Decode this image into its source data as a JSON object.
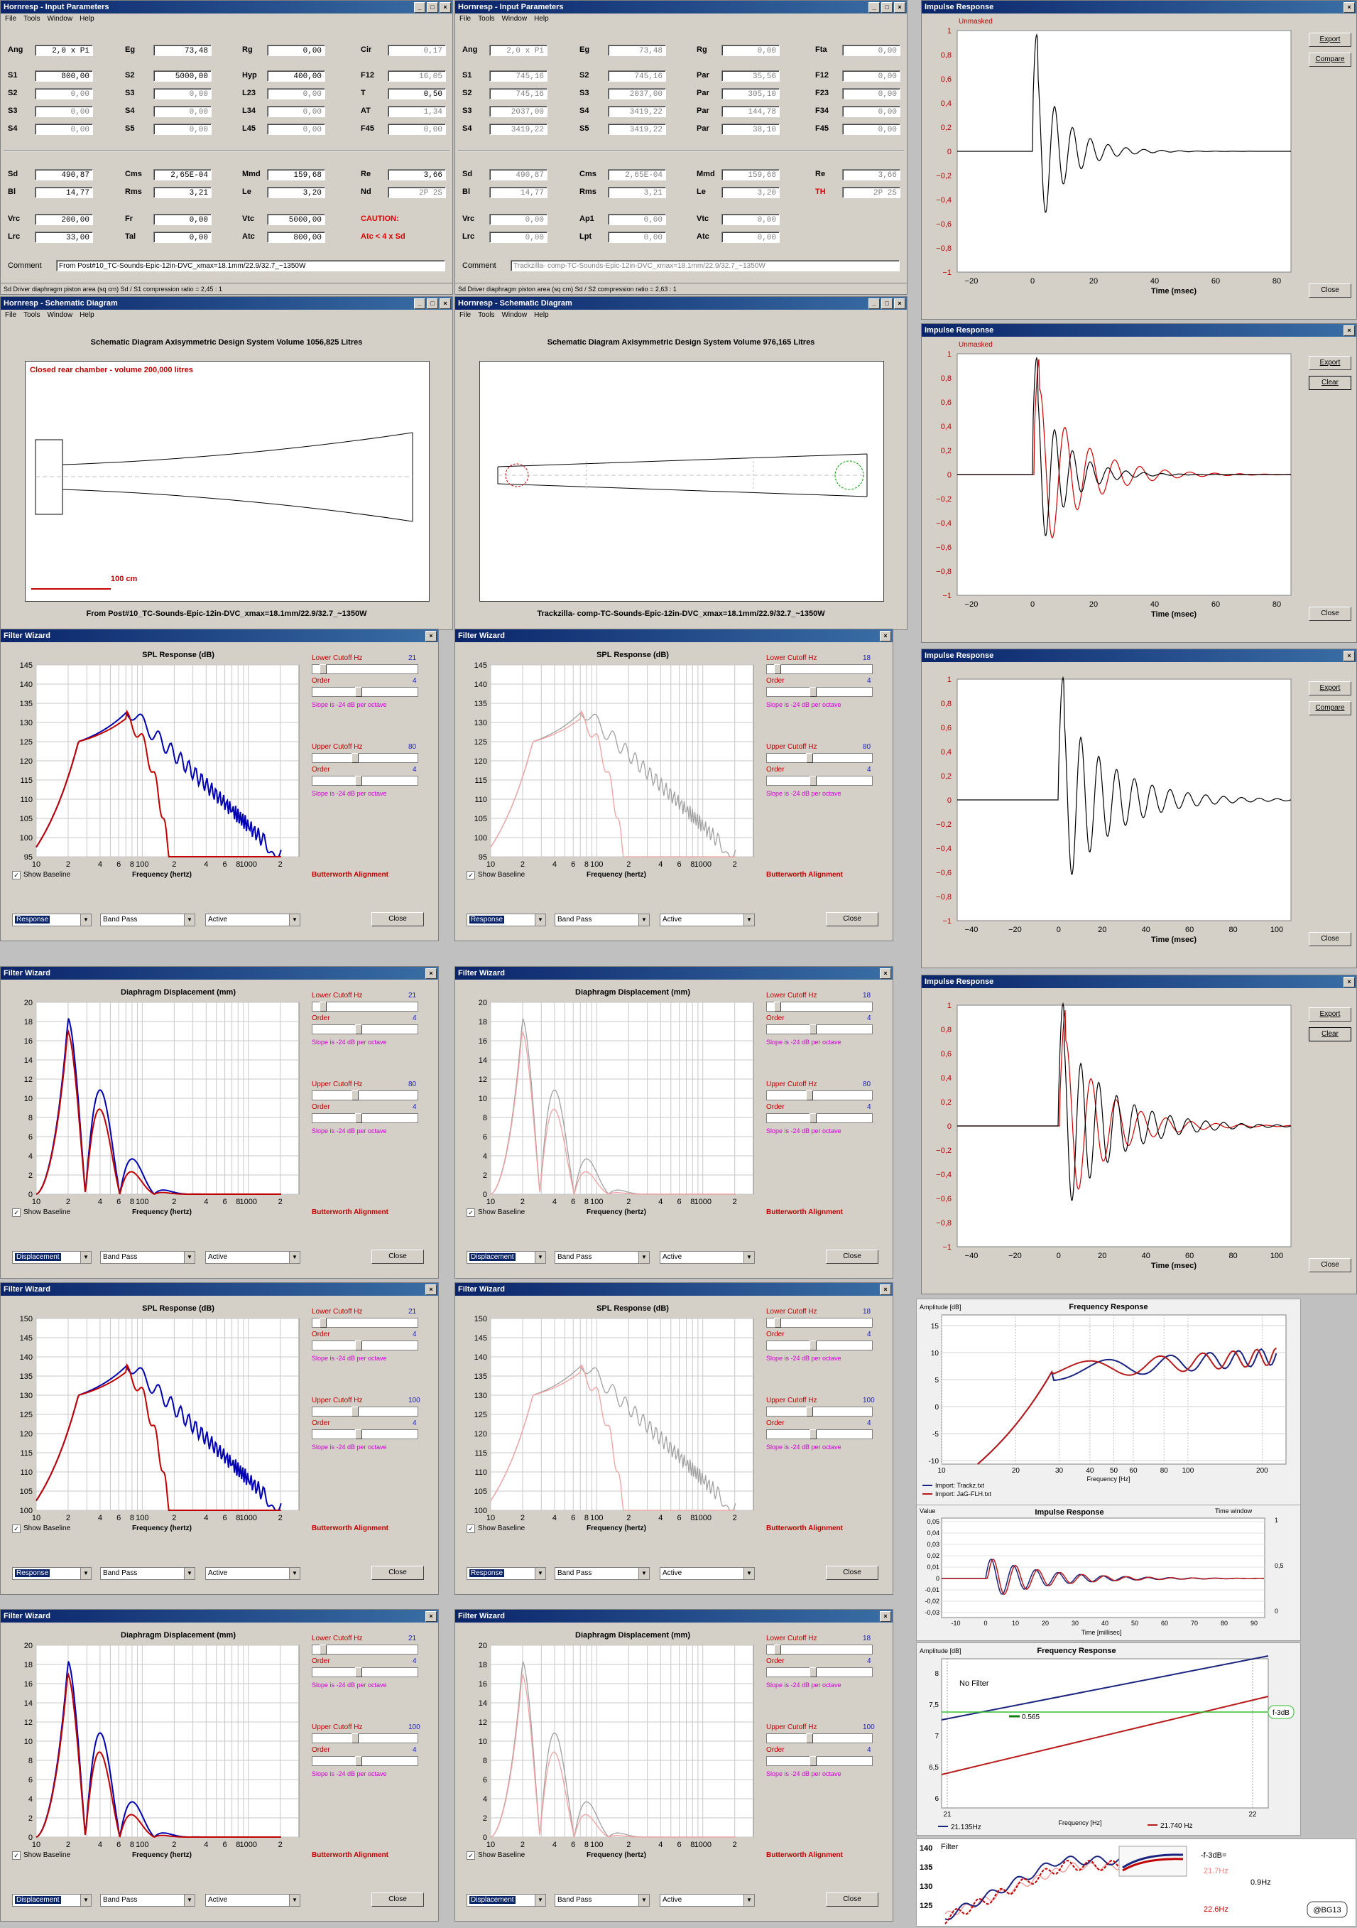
{
  "colors": {
    "red": "#c00000",
    "blue": "#0000b0",
    "pink": "#f4a0a0",
    "grey": "#a0a0a0",
    "title_blue": "#0a246a"
  },
  "input_windows": [
    {
      "title": "Hornresp - Input Parameters",
      "menu": [
        "File",
        "Tools",
        "Window",
        "Help"
      ],
      "rows": [
        [
          [
            "Ang",
            "2,0 x Pi"
          ],
          [
            "Eg",
            "73,48"
          ],
          [
            "Rg",
            "0,00"
          ],
          [
            "Cir",
            "0,17"
          ]
        ],
        [
          [
            "S1",
            "800,00"
          ],
          [
            "S2",
            "5000,00"
          ],
          [
            "Hyp",
            "400,00"
          ],
          [
            "F12",
            "16,05"
          ]
        ],
        [
          [
            "S2",
            "0,00"
          ],
          [
            "S3",
            "0,00"
          ],
          [
            "L23",
            "0,00"
          ],
          [
            "T",
            "0,50"
          ]
        ],
        [
          [
            "S3",
            "0,00"
          ],
          [
            "S4",
            "0,00"
          ],
          [
            "L34",
            "0,00"
          ],
          [
            "AT",
            "1,34"
          ]
        ],
        [
          [
            "S4",
            "0,00"
          ],
          [
            "S5",
            "0,00"
          ],
          [
            "L45",
            "0,00"
          ],
          [
            "F45",
            "0,00"
          ]
        ],
        [
          [
            "Sd",
            "490,87"
          ],
          [
            "Cms",
            "2,65E-04"
          ],
          [
            "Mmd",
            "159,68"
          ],
          [
            "Re",
            "3,66"
          ]
        ],
        [
          [
            "Bl",
            "14,77"
          ],
          [
            "Rms",
            "3,21"
          ],
          [
            "Le",
            "3,20"
          ],
          [
            "Nd",
            "2P 2S"
          ]
        ],
        [
          [
            "Vrc",
            "200,00"
          ],
          [
            "Fr",
            "0,00"
          ],
          [
            "Vtc",
            "5000,00"
          ],
          [
            "CAUTION:",
            ""
          ]
        ],
        [
          [
            "Lrc",
            "33,00"
          ],
          [
            "Tal",
            "0,00"
          ],
          [
            "Atc",
            "800,00"
          ],
          [
            "Atc < 4 x Sd",
            ""
          ]
        ]
      ],
      "comment_label": "Comment",
      "comment": "From Post#10_TC-Sounds-Epic-12in-DVC_xmax=18.1mm/22.9/32.7_~1350W",
      "status": "Sd   Driver diaphragm piston area  (sq cm)    Sd / S1 compression ratio = 2,45 : 1"
    },
    {
      "title": "Hornresp - Input Parameters",
      "menu": [
        "File",
        "Tools",
        "Window",
        "Help"
      ],
      "rows": [
        [
          [
            "Ang",
            "2,0 x Pi"
          ],
          [
            "Eg",
            "73,48"
          ],
          [
            "Rg",
            "0,00"
          ],
          [
            "Fta",
            "0,00"
          ]
        ],
        [
          [
            "S1",
            "745,16"
          ],
          [
            "S2",
            "745,16"
          ],
          [
            "Par",
            "35,56"
          ],
          [
            "F12",
            "0,00"
          ]
        ],
        [
          [
            "S2",
            "745,16"
          ],
          [
            "S3",
            "2037,00"
          ],
          [
            "Par",
            "305,10"
          ],
          [
            "F23",
            "0,00"
          ]
        ],
        [
          [
            "S3",
            "2037,00"
          ],
          [
            "S4",
            "3419,22"
          ],
          [
            "Par",
            "144,78"
          ],
          [
            "F34",
            "0,00"
          ]
        ],
        [
          [
            "S4",
            "3419,22"
          ],
          [
            "S5",
            "3419,22"
          ],
          [
            "Par",
            "38,10"
          ],
          [
            "F45",
            "0,00"
          ]
        ],
        [
          [
            "Sd",
            "490,87"
          ],
          [
            "Cms",
            "2,65E-04"
          ],
          [
            "Mmd",
            "159,68"
          ],
          [
            "Re",
            "3,66"
          ]
        ],
        [
          [
            "Bl",
            "14,77"
          ],
          [
            "Rms",
            "3,21"
          ],
          [
            "Le",
            "3,20"
          ],
          [
            "TH",
            "2P 2S"
          ]
        ],
        [
          [
            "Vrc",
            "0,00"
          ],
          [
            "Ap1",
            "0,00"
          ],
          [
            "Vtc",
            "0,00"
          ],
          [
            "",
            ""
          ]
        ],
        [
          [
            "Lrc",
            "0,00"
          ],
          [
            "Lpt",
            "0,00"
          ],
          [
            "Atc",
            "0,00"
          ],
          [
            "",
            ""
          ]
        ]
      ],
      "comment_label": "Comment",
      "comment": "Trackzilla- comp-TC-Sounds-Epic-12in-DVC_xmax=18.1mm/22.9/32.7_~1350W",
      "status": "Sd   Driver diaphragm piston area  (sq cm)    Sd / S2 compression ratio = 2,63 : 1"
    }
  ],
  "schematic_windows": [
    {
      "title": "Hornresp - Schematic Diagram",
      "menu": [
        "File",
        "Tools",
        "Window",
        "Help"
      ],
      "heading": "Schematic Diagram    Axisymmetric Design    System Volume 1056,825 Litres",
      "note": "Closed rear chamber - volume 200,000 litres",
      "scale": "100 cm",
      "caption": "From Post#10_TC-Sounds-Epic-12in-DVC_xmax=18.1mm/22.9/32.7_~1350W"
    },
    {
      "title": "Hornresp - Schematic Diagram",
      "menu": [
        "File",
        "Tools",
        "Window",
        "Help"
      ],
      "heading": "Schematic Diagram    Axisymmetric Design    System Volume 976,165 Litres",
      "note": "",
      "scale": "",
      "caption": "Trackzilla- comp-TC-Sounds-Epic-12in-DVC_xmax=18.1mm/22.9/32.7_~1350W"
    }
  ],
  "filter_windows": [
    {
      "title": "Filter Wizard",
      "chart_title": "SPL Response (dB)",
      "yticks": [
        "145",
        "140",
        "135",
        "130",
        "125",
        "120",
        "115",
        "110",
        "105",
        "100",
        "95"
      ],
      "lower_cutoff": "21",
      "upper_cutoff": "80",
      "mode": "Response",
      "curve": "spl",
      "theme": "dark"
    },
    {
      "title": "Filter Wizard",
      "chart_title": "SPL Response (dB)",
      "yticks": [
        "145",
        "140",
        "135",
        "130",
        "125",
        "120",
        "115",
        "110",
        "105",
        "100",
        "95"
      ],
      "lower_cutoff": "18",
      "upper_cutoff": "80",
      "mode": "Response",
      "curve": "spl",
      "theme": "light"
    },
    {
      "title": "Filter Wizard",
      "chart_title": "Diaphragm Displacement (mm)",
      "yticks": [
        "20",
        "18",
        "16",
        "14",
        "12",
        "10",
        "8",
        "6",
        "4",
        "2",
        "0"
      ],
      "lower_cutoff": "21",
      "upper_cutoff": "80",
      "mode": "Displacement",
      "curve": "disp",
      "theme": "dark"
    },
    {
      "title": "Filter Wizard",
      "chart_title": "Diaphragm Displacement (mm)",
      "yticks": [
        "20",
        "18",
        "16",
        "14",
        "12",
        "10",
        "8",
        "6",
        "4",
        "2",
        "0"
      ],
      "lower_cutoff": "18",
      "upper_cutoff": "80",
      "mode": "Displacement",
      "curve": "disp",
      "theme": "light"
    },
    {
      "title": "Filter Wizard",
      "chart_title": "SPL Response (dB)",
      "yticks": [
        "150",
        "145",
        "140",
        "135",
        "130",
        "125",
        "120",
        "115",
        "110",
        "105",
        "100"
      ],
      "lower_cutoff": "21",
      "upper_cutoff": "100",
      "mode": "Response",
      "curve": "spl",
      "theme": "dark"
    },
    {
      "title": "Filter Wizard",
      "chart_title": "SPL Response (dB)",
      "yticks": [
        "150",
        "145",
        "140",
        "135",
        "130",
        "125",
        "120",
        "115",
        "110",
        "105",
        "100"
      ],
      "lower_cutoff": "18",
      "upper_cutoff": "100",
      "mode": "Response",
      "curve": "spl",
      "theme": "light"
    },
    {
      "title": "Filter Wizard",
      "chart_title": "Diaphragm Displacement (mm)",
      "yticks": [
        "20",
        "18",
        "16",
        "14",
        "12",
        "10",
        "8",
        "6",
        "4",
        "2",
        "0"
      ],
      "lower_cutoff": "21",
      "upper_cutoff": "100",
      "mode": "Displacement",
      "curve": "disp",
      "theme": "dark"
    },
    {
      "title": "Filter Wizard",
      "chart_title": "Diaphragm Displacement (mm)",
      "yticks": [
        "20",
        "18",
        "16",
        "14",
        "12",
        "10",
        "8",
        "6",
        "4",
        "2",
        "0"
      ],
      "lower_cutoff": "18",
      "upper_cutoff": "100",
      "mode": "Displacement",
      "curve": "disp",
      "theme": "light"
    }
  ],
  "filter_common": {
    "lower_label": "Lower Cutoff  Hz",
    "upper_label": "Upper Cutoff  Hz",
    "order_label": "Order",
    "order": "4",
    "slope": "Slope is -24 dB per octave",
    "xlabel": "Frequency (hertz)",
    "baseline": "Show Baseline",
    "alignment": "Butterworth Alignment",
    "xticks": [
      "10",
      "2",
      "4",
      "6",
      "8",
      "100",
      "2",
      "4",
      "6",
      "8",
      "1000",
      "2"
    ],
    "type": "Band Pass",
    "active": "Active",
    "close": "Close"
  },
  "impulse_windows": [
    {
      "title": "Impulse Response",
      "mask": "Unmasked",
      "buttons": [
        "Export",
        "Compare"
      ],
      "close": "Close",
      "xticks": [
        "−20",
        "0",
        "20",
        "40",
        "60",
        "80"
      ],
      "xlabel": "Time (msec)",
      "traces": 1,
      "yticks": [
        "1",
        "0,8",
        "0,6",
        "0,4",
        "0,2",
        "0",
        "−0,2",
        "−0,4",
        "−0,6",
        "−0,8",
        "−1"
      ]
    },
    {
      "title": "Impulse Response",
      "mask": "Unmasked",
      "buttons": [
        "Export",
        "Clear"
      ],
      "close": "Close",
      "xticks": [
        "−20",
        "0",
        "20",
        "40",
        "60",
        "80"
      ],
      "xlabel": "Time (msec)",
      "traces": 2,
      "yticks": [
        "1",
        "0,8",
        "0,6",
        "0,4",
        "0,2",
        "0",
        "−0,2",
        "−0,4",
        "−0,6",
        "−0,8",
        "−1"
      ]
    },
    {
      "title": "Impulse Response",
      "mask": "",
      "buttons": [
        "Export",
        "Compare"
      ],
      "close": "Close",
      "xticks": [
        "−40",
        "−20",
        "0",
        "20",
        "40",
        "60",
        "80",
        "100"
      ],
      "xlabel": "Time (msec)",
      "traces": 1,
      "yticks": [
        "1",
        "0,8",
        "0,6",
        "0,4",
        "0,2",
        "0",
        "−0,2",
        "−0,4",
        "−0,6",
        "−0,8",
        "−1"
      ]
    },
    {
      "title": "Impulse Response",
      "mask": "",
      "buttons": [
        "Export",
        "Clear"
      ],
      "close": "Close",
      "xticks": [
        "−40",
        "−20",
        "0",
        "20",
        "40",
        "60",
        "80",
        "100"
      ],
      "xlabel": "Time (msec)",
      "traces": 2,
      "yticks": [
        "1",
        "0,8",
        "0,6",
        "0,4",
        "0,2",
        "0",
        "−0,2",
        "−0,4",
        "−0,6",
        "−0,8",
        "−1"
      ]
    }
  ],
  "freq_response": {
    "title": "Frequency Response",
    "ylabel": "Amplitude [dB]",
    "xlabel": "Frequency [Hz]",
    "yticks": [
      "15",
      "10",
      "5",
      "0",
      "-5",
      "-10"
    ],
    "xticks": [
      "10",
      "20",
      "30",
      "40",
      "50",
      "60",
      "80",
      "100",
      "200"
    ],
    "legend": [
      "Import: Trackz.txt",
      "Import: JaG-FLH.txt"
    ]
  },
  "impulse_small": {
    "title": "Impulse Response",
    "ylabel": "Value",
    "xlabel": "Time [millisec]",
    "window": "Time window",
    "yticks": [
      "0,05",
      "0,04",
      "0,03",
      "0,02",
      "0,01",
      "0",
      "-0,01",
      "-0,02",
      "-0,03"
    ],
    "xticks": [
      "-10",
      "0",
      "10",
      "20",
      "30",
      "40",
      "50",
      "60",
      "70",
      "80",
      "90"
    ],
    "rticks": [
      "1",
      "0,5",
      "0"
    ]
  },
  "f3db": {
    "title": "Frequency Response",
    "ylabel": "Amplitude [dB]",
    "xlabel": "Frequency [Hz]",
    "no_filter": "No Filter",
    "yticks": [
      "8",
      "7,5",
      "7",
      "6,5",
      "6"
    ],
    "xticks": [
      "21",
      "22"
    ],
    "marker": "0.565",
    "tag": "f-3dB",
    "legend_blue": "21.135Hz",
    "legend_red": "21.740 Hz"
  },
  "bottom_snip": {
    "title": "Filter",
    "yticks": [
      "140",
      "135",
      "130",
      "125"
    ],
    "label1": "-f-3dB=",
    "v1": "21.7Hz",
    "v2": "0.9Hz",
    "v3": "22.6Hz",
    "credit": "@BG13"
  }
}
